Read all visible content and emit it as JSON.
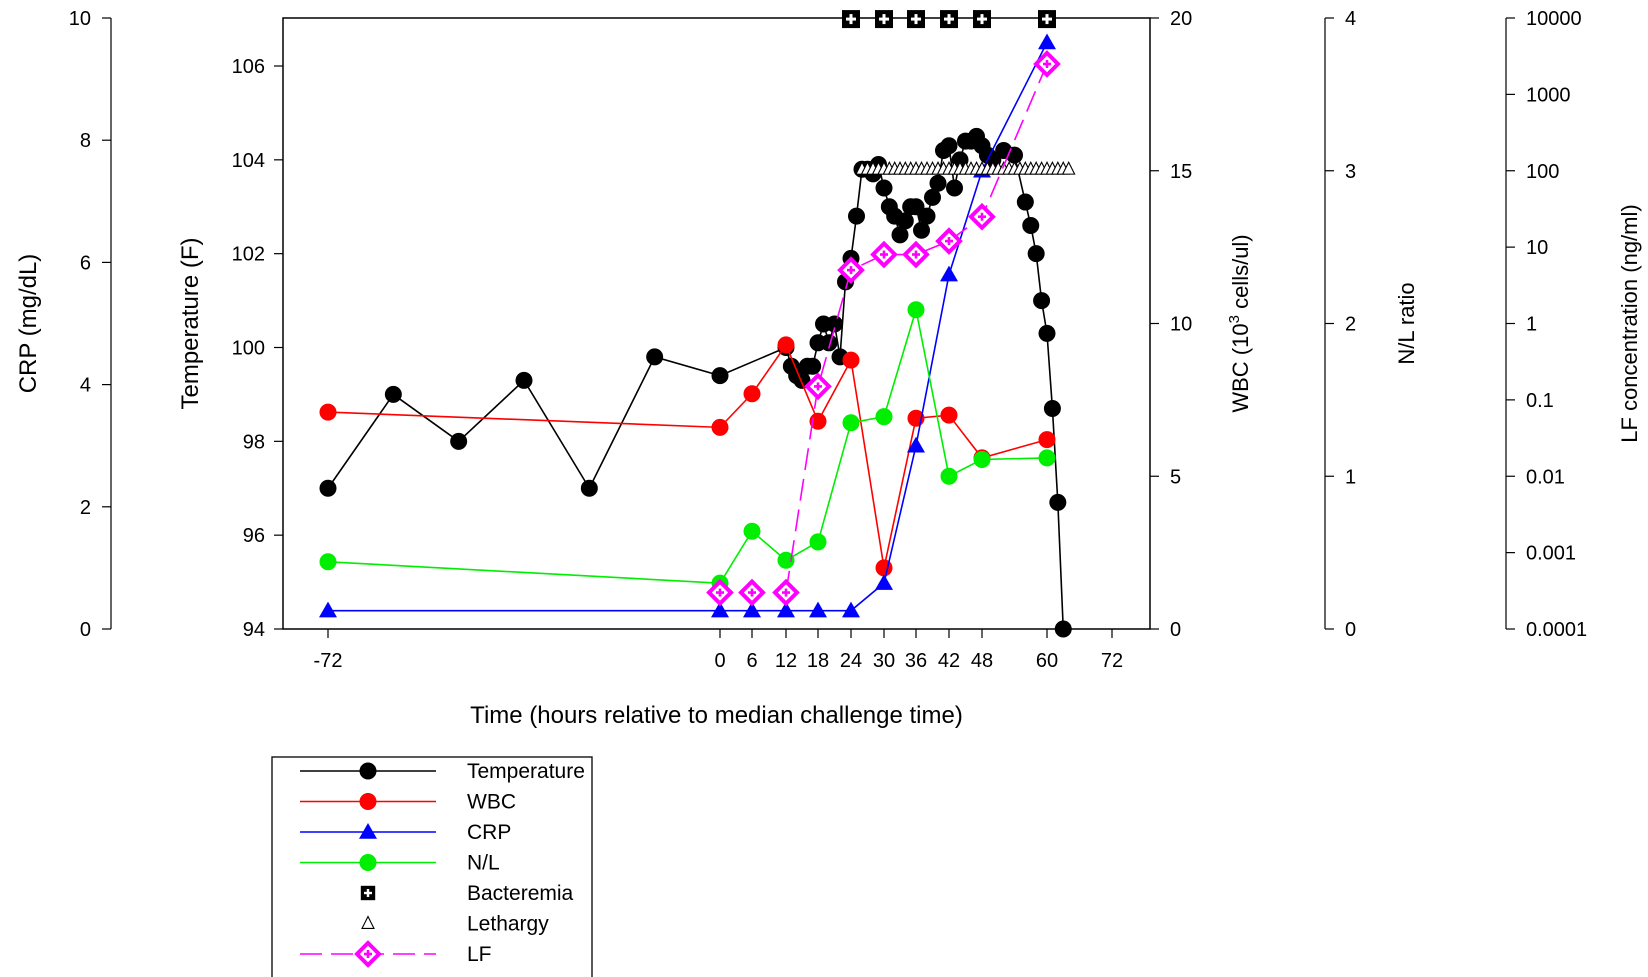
{
  "chart_data": {
    "type": "line",
    "xlabel": "Time (hours relative to median challenge time)",
    "xticks": [
      "-72",
      "0",
      "6",
      "12",
      "18",
      "24",
      "30",
      "36",
      "42",
      "48",
      "60",
      "72"
    ],
    "axes": {
      "crp": {
        "label": "CRP (mg/dL)",
        "ylim": [
          0,
          10
        ],
        "ticks": [
          "0",
          "2",
          "4",
          "6",
          "8",
          "10"
        ]
      },
      "temp": {
        "label": "Temperature (F)",
        "ylim": [
          94,
          107
        ],
        "ticks": [
          "94",
          "96",
          "98",
          "100",
          "102",
          "104",
          "106"
        ]
      },
      "wbc": {
        "label_prefix": "WBC (10",
        "label_sup": "3",
        "label_suffix": " cells/ul)",
        "ylim": [
          0,
          20
        ],
        "ticks": [
          "0",
          "5",
          "10",
          "15",
          "20"
        ]
      },
      "nl": {
        "label": "N/L ratio",
        "ylim": [
          0,
          4
        ],
        "ticks": [
          "0",
          "1",
          "2",
          "3",
          "4"
        ]
      },
      "lf": {
        "label": "LF concentration (ng/ml)",
        "scale": "log",
        "ylim": [
          0.0001,
          10000
        ],
        "ticks": [
          "0.0001",
          "0.001",
          "0.01",
          "0.1",
          "1",
          "10",
          "100",
          "1000",
          "10000"
        ]
      }
    },
    "series": [
      {
        "name": "Temperature",
        "axis": "temp",
        "color": "#000000",
        "marker": "circle",
        "line": "solid",
        "x": [
          -72,
          -60,
          -48,
          -36,
          -24,
          -12,
          0,
          12,
          13,
          14,
          15,
          16,
          17,
          18,
          19,
          20,
          21,
          22,
          23,
          24,
          25,
          26,
          27,
          28,
          29,
          30,
          31,
          32,
          33,
          34,
          35,
          36,
          37,
          38,
          39,
          40,
          41,
          42,
          43,
          44,
          45,
          46,
          47,
          48,
          49,
          50,
          52,
          54,
          56,
          57,
          58,
          59,
          60,
          61,
          62,
          63
        ],
        "y": [
          97.0,
          99.0,
          98.0,
          99.3,
          97.0,
          99.8,
          99.4,
          100.0,
          99.6,
          99.4,
          99.3,
          99.6,
          99.6,
          100.1,
          100.5,
          100.1,
          100.5,
          99.8,
          101.4,
          101.9,
          102.8,
          103.8,
          103.8,
          103.7,
          103.9,
          103.4,
          103.0,
          102.8,
          102.4,
          102.7,
          103.0,
          103.0,
          102.5,
          102.8,
          103.2,
          103.5,
          104.2,
          104.3,
          103.4,
          104.0,
          104.4,
          104.4,
          104.5,
          104.3,
          104.1,
          104.0,
          104.2,
          104.1,
          103.1,
          102.6,
          102.0,
          101.0,
          100.3,
          98.7,
          96.7,
          94.0
        ]
      },
      {
        "name": "WBC",
        "axis": "wbc",
        "color": "#ff0000",
        "marker": "circle",
        "line": "solid",
        "x": [
          -72,
          0,
          6,
          12,
          18,
          24,
          30,
          36,
          42,
          48,
          60
        ],
        "y": [
          7.1,
          6.6,
          7.7,
          9.3,
          6.8,
          8.8,
          2.0,
          6.9,
          7.0,
          5.6,
          6.2
        ]
      },
      {
        "name": "CRP",
        "axis": "crp",
        "color": "#0000ff",
        "marker": "triangle",
        "line": "solid",
        "x": [
          -72,
          0,
          6,
          12,
          18,
          24,
          30,
          36,
          42,
          48,
          60
        ],
        "y": [
          0.3,
          0.3,
          0.3,
          0.3,
          0.3,
          0.3,
          0.75,
          3.0,
          5.8,
          7.5,
          9.6
        ]
      },
      {
        "name": "N/L",
        "axis": "nl",
        "color": "#00ee00",
        "marker": "circle",
        "line": "solid",
        "x": [
          -72,
          0,
          6,
          12,
          18,
          24,
          30,
          36,
          42,
          48,
          60
        ],
        "y": [
          0.44,
          0.3,
          0.64,
          0.45,
          0.57,
          1.35,
          1.39,
          2.09,
          1.0,
          1.11,
          1.12
        ]
      },
      {
        "name": "Bacteremia",
        "axis": "temp",
        "color": "#000000",
        "marker": "square-plus",
        "line": "none",
        "x": [
          24,
          30,
          36,
          42,
          48,
          60
        ],
        "y": [
          107,
          107,
          107,
          107,
          107,
          107
        ]
      },
      {
        "name": "Lethargy",
        "axis": "temp",
        "color": "#000000",
        "marker": "open-triangle",
        "line": "none",
        "x": [
          26,
          27,
          28,
          29,
          30,
          31,
          32,
          33,
          34,
          35,
          36,
          37,
          38,
          39,
          40,
          41,
          42,
          43,
          44,
          45,
          46,
          47,
          48,
          49,
          50,
          51,
          52,
          53,
          54,
          55,
          56,
          57,
          58,
          59,
          60,
          61,
          62,
          63,
          64
        ],
        "y": [
          103.8,
          103.8,
          103.8,
          103.8,
          103.8,
          103.8,
          103.8,
          103.8,
          103.8,
          103.8,
          103.8,
          103.8,
          103.8,
          103.8,
          103.8,
          103.8,
          103.8,
          103.8,
          103.8,
          103.8,
          103.8,
          103.8,
          103.8,
          103.8,
          103.8,
          103.8,
          103.8,
          103.8,
          103.8,
          103.8,
          103.8,
          103.8,
          103.8,
          103.8,
          103.8,
          103.8,
          103.8,
          103.8,
          103.8
        ]
      },
      {
        "name": "LF",
        "axis": "lf",
        "color": "#ff00ff",
        "marker": "diamond-plus",
        "line": "dashed",
        "x": [
          0,
          6,
          12,
          18,
          24,
          30,
          36,
          42,
          48,
          60
        ],
        "y": [
          0.0003,
          0.0003,
          0.0003,
          0.15,
          5.0,
          8.0,
          8.0,
          12.0,
          25.0,
          2500.0
        ]
      }
    ],
    "legend": {
      "placement": "below-plot",
      "entries": [
        "Temperature",
        "WBC",
        "CRP",
        "N/L",
        "Bacteremia",
        "Lethargy",
        "LF"
      ]
    }
  }
}
